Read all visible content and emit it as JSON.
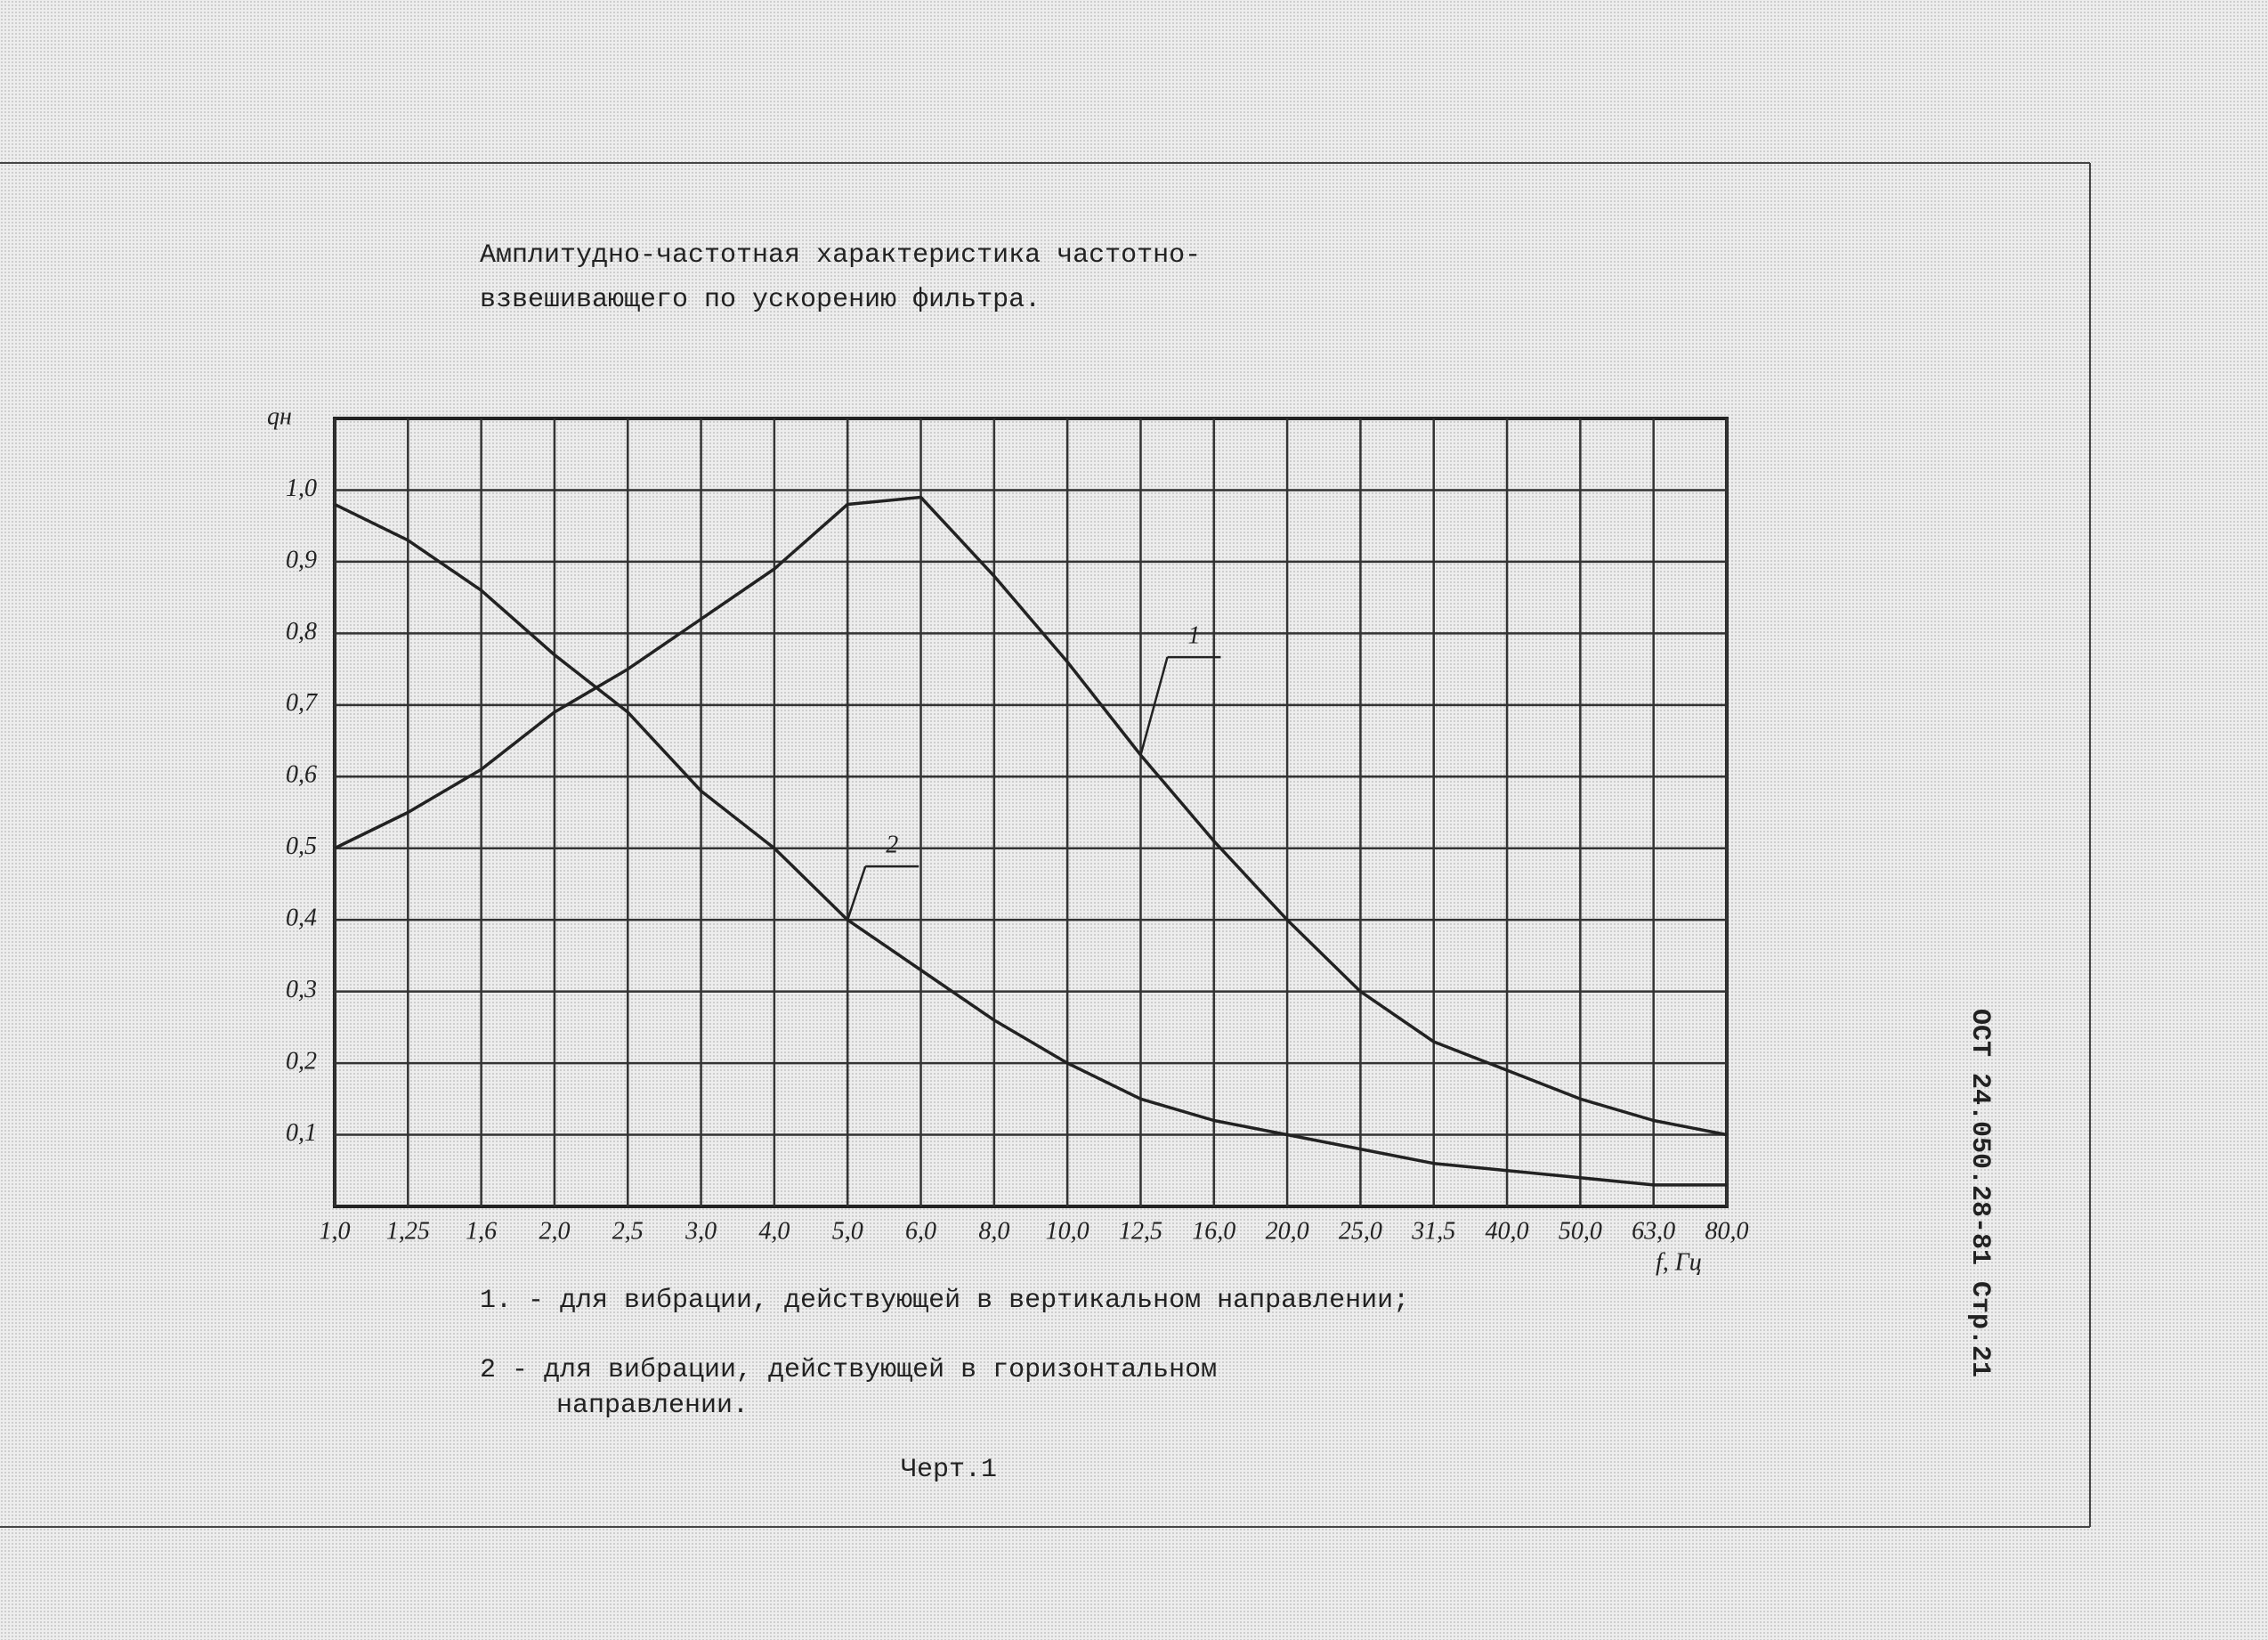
{
  "title_lines": [
    "Амплитудно-частотная характеристика частотно-",
    "взвешивающего по ускорению фильтра."
  ],
  "chart_data": {
    "type": "line",
    "categories": [
      "1,0",
      "1,25",
      "1,6",
      "2,0",
      "2,5",
      "3,0",
      "4,0",
      "5,0",
      "6,0",
      "8,0",
      "10,0",
      "12,5",
      "16,0",
      "20,0",
      "25,0",
      "31,5",
      "40,0",
      "50,0",
      "63,0",
      "80,0"
    ],
    "y_label": "qн",
    "x_label": "f, Гц",
    "series": [
      {
        "name": "1",
        "color": "#222222",
        "values": [
          0.5,
          0.55,
          0.61,
          0.69,
          0.75,
          0.82,
          0.89,
          0.98,
          0.99,
          0.88,
          0.76,
          0.63,
          0.51,
          0.4,
          0.3,
          0.23,
          0.19,
          0.15,
          0.12,
          0.1
        ]
      },
      {
        "name": "2",
        "color": "#222222",
        "values": [
          0.98,
          0.93,
          0.86,
          0.77,
          0.69,
          0.58,
          0.5,
          0.4,
          0.33,
          0.26,
          0.2,
          0.15,
          0.12,
          0.1,
          0.08,
          0.06,
          0.05,
          0.04,
          0.03,
          0.03
        ]
      }
    ],
    "ylim": [
      0,
      1.1
    ],
    "yticks": [
      {
        "value": 0.1,
        "label": "0,1"
      },
      {
        "value": 0.2,
        "label": "0,2"
      },
      {
        "value": 0.3,
        "label": "0,3"
      },
      {
        "value": 0.4,
        "label": "0,4"
      },
      {
        "value": 0.5,
        "label": "0,5"
      },
      {
        "value": 0.6,
        "label": "0,6"
      },
      {
        "value": 0.7,
        "label": "0,7"
      },
      {
        "value": 0.8,
        "label": "0,8"
      },
      {
        "value": 0.9,
        "label": "0,9"
      },
      {
        "value": 1.0,
        "label": "1,0"
      }
    ],
    "grid": true
  },
  "notes": [
    "1. - для вибрации, действующей в вертикальном направлении;",
    "2 - для вибрации, действующей в горизонтальном",
    "направлении."
  ],
  "caption": "Черт.1",
  "side_label": "ОСТ 24.050.28-81 Стр.21"
}
